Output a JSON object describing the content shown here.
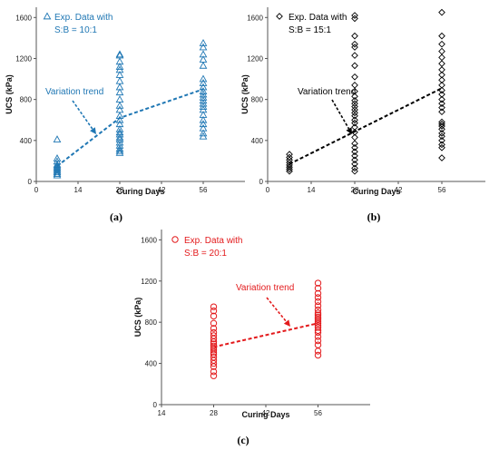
{
  "chart_data": [
    {
      "type": "scatter",
      "panel_label": "(a)",
      "xlabel": "Curing Days",
      "ylabel": "UCS  (kPa)",
      "xlim": [
        0,
        70
      ],
      "ylim": [
        0,
        1700
      ],
      "xticks": [
        0,
        14,
        28,
        42,
        56
      ],
      "yticks": [
        0,
        400,
        800,
        1200,
        1600
      ],
      "grid": false,
      "legend": "top-left",
      "marker": "triangle",
      "color": "#1f77b4",
      "series": [
        {
          "name": "Exp. Data with S:B = 10:1",
          "name_lines": [
            "Exp. Data with",
            "S:B = 10:1"
          ],
          "points": [
            [
              7,
              410
            ],
            [
              7,
              225
            ],
            [
              7,
              195
            ],
            [
              7,
              165
            ],
            [
              7,
              150
            ],
            [
              7,
              135
            ],
            [
              7,
              120
            ],
            [
              7,
              105
            ],
            [
              7,
              90
            ],
            [
              7,
              75
            ],
            [
              7,
              60
            ],
            [
              28,
              1240
            ],
            [
              28,
              1230
            ],
            [
              28,
              1170
            ],
            [
              28,
              1120
            ],
            [
              28,
              1090
            ],
            [
              28,
              1040
            ],
            [
              28,
              980
            ],
            [
              28,
              920
            ],
            [
              28,
              870
            ],
            [
              28,
              800
            ],
            [
              28,
              740
            ],
            [
              28,
              700
            ],
            [
              28,
              640
            ],
            [
              28,
              600
            ],
            [
              28,
              560
            ],
            [
              28,
              510
            ],
            [
              28,
              480
            ],
            [
              28,
              460
            ],
            [
              28,
              430
            ],
            [
              28,
              410
            ],
            [
              28,
              380
            ],
            [
              28,
              350
            ],
            [
              28,
              320
            ],
            [
              28,
              300
            ],
            [
              28,
              280
            ],
            [
              56,
              1350
            ],
            [
              56,
              1310
            ],
            [
              56,
              1240
            ],
            [
              56,
              1190
            ],
            [
              56,
              1130
            ],
            [
              56,
              1000
            ],
            [
              56,
              960
            ],
            [
              56,
              920
            ],
            [
              56,
              880
            ],
            [
              56,
              850
            ],
            [
              56,
              820
            ],
            [
              56,
              790
            ],
            [
              56,
              760
            ],
            [
              56,
              730
            ],
            [
              56,
              700
            ],
            [
              56,
              650
            ],
            [
              56,
              600
            ],
            [
              56,
              560
            ],
            [
              56,
              520
            ],
            [
              56,
              470
            ],
            [
              56,
              440
            ]
          ]
        }
      ],
      "trend": {
        "label": "Variation trend",
        "points": [
          [
            7,
            150
          ],
          [
            28,
            620
          ],
          [
            56,
            900
          ]
        ]
      }
    },
    {
      "type": "scatter",
      "panel_label": "(b)",
      "xlabel": "Curing Days",
      "ylabel": "UCS  (kPa)",
      "xlim": [
        0,
        70
      ],
      "ylim": [
        0,
        1700
      ],
      "xticks": [
        0,
        14,
        28,
        42,
        56
      ],
      "yticks": [
        0,
        400,
        800,
        1200,
        1600
      ],
      "grid": false,
      "legend": "top-left",
      "marker": "diamond",
      "color": "#000000",
      "series": [
        {
          "name": "Exp. Data with S:B = 15:1",
          "name_lines": [
            "Exp. Data with",
            "S:B = 15:1"
          ],
          "points": [
            [
              7,
              265
            ],
            [
              7,
              235
            ],
            [
              7,
              210
            ],
            [
              7,
              185
            ],
            [
              7,
              160
            ],
            [
              7,
              140
            ],
            [
              7,
              120
            ],
            [
              7,
              100
            ],
            [
              28,
              1620
            ],
            [
              28,
              1590
            ],
            [
              28,
              1420
            ],
            [
              28,
              1340
            ],
            [
              28,
              1310
            ],
            [
              28,
              1230
            ],
            [
              28,
              1130
            ],
            [
              28,
              1020
            ],
            [
              28,
              940
            ],
            [
              28,
              880
            ],
            [
              28,
              830
            ],
            [
              28,
              790
            ],
            [
              28,
              760
            ],
            [
              28,
              730
            ],
            [
              28,
              700
            ],
            [
              28,
              670
            ],
            [
              28,
              640
            ],
            [
              28,
              600
            ],
            [
              28,
              570
            ],
            [
              28,
              530
            ],
            [
              28,
              480
            ],
            [
              28,
              430
            ],
            [
              28,
              370
            ],
            [
              28,
              330
            ],
            [
              28,
              290
            ],
            [
              28,
              250
            ],
            [
              28,
              210
            ],
            [
              28,
              170
            ],
            [
              28,
              130
            ],
            [
              28,
              100
            ],
            [
              56,
              1650
            ],
            [
              56,
              1420
            ],
            [
              56,
              1340
            ],
            [
              56,
              1270
            ],
            [
              56,
              1210
            ],
            [
              56,
              1150
            ],
            [
              56,
              1090
            ],
            [
              56,
              1040
            ],
            [
              56,
              990
            ],
            [
              56,
              940
            ],
            [
              56,
              890
            ],
            [
              56,
              850
            ],
            [
              56,
              800
            ],
            [
              56,
              760
            ],
            [
              56,
              720
            ],
            [
              56,
              680
            ],
            [
              56,
              580
            ],
            [
              56,
              560
            ],
            [
              56,
              540
            ],
            [
              56,
              510
            ],
            [
              56,
              470
            ],
            [
              56,
              440
            ],
            [
              56,
              400
            ],
            [
              56,
              360
            ],
            [
              56,
              330
            ],
            [
              56,
              230
            ]
          ]
        }
      ],
      "trend": {
        "label": "Variation trend",
        "points": [
          [
            7,
            170
          ],
          [
            56,
            910
          ]
        ]
      }
    },
    {
      "type": "scatter",
      "panel_label": "(c)",
      "xlabel": "Curing Days",
      "ylabel": "UCS  (kPa)",
      "xlim": [
        14,
        70
      ],
      "ylim": [
        0,
        1700
      ],
      "xticks": [
        14,
        28,
        42,
        56
      ],
      "yticks": [
        0,
        400,
        800,
        1200,
        1600
      ],
      "grid": false,
      "legend": "top-left",
      "marker": "circle",
      "color": "#e31a1c",
      "series": [
        {
          "name": "Exp. Data with S:B = 20:1",
          "name_lines": [
            "Exp. Data with",
            "S:B = 20:1"
          ],
          "points": [
            [
              28,
              950
            ],
            [
              28,
              910
            ],
            [
              28,
              860
            ],
            [
              28,
              790
            ],
            [
              28,
              740
            ],
            [
              28,
              700
            ],
            [
              28,
              670
            ],
            [
              28,
              640
            ],
            [
              28,
              610
            ],
            [
              28,
              590
            ],
            [
              28,
              570
            ],
            [
              28,
              550
            ],
            [
              28,
              530
            ],
            [
              28,
              510
            ],
            [
              28,
              490
            ],
            [
              28,
              460
            ],
            [
              28,
              430
            ],
            [
              28,
              400
            ],
            [
              28,
              370
            ],
            [
              28,
              320
            ],
            [
              28,
              280
            ],
            [
              56,
              1180
            ],
            [
              56,
              1130
            ],
            [
              56,
              1080
            ],
            [
              56,
              1040
            ],
            [
              56,
              1000
            ],
            [
              56,
              960
            ],
            [
              56,
              920
            ],
            [
              56,
              890
            ],
            [
              56,
              870
            ],
            [
              56,
              850
            ],
            [
              56,
              830
            ],
            [
              56,
              810
            ],
            [
              56,
              790
            ],
            [
              56,
              770
            ],
            [
              56,
              750
            ],
            [
              56,
              720
            ],
            [
              56,
              700
            ],
            [
              56,
              660
            ],
            [
              56,
              620
            ],
            [
              56,
              580
            ],
            [
              56,
              520
            ],
            [
              56,
              480
            ]
          ]
        }
      ],
      "trend": {
        "label": "Variation trend",
        "points": [
          [
            28,
            560
          ],
          [
            56,
            790
          ]
        ]
      }
    }
  ]
}
